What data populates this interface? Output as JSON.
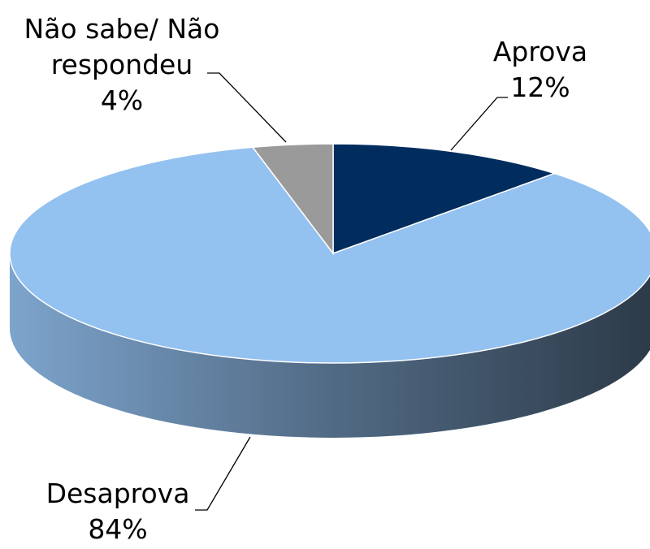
{
  "chart_data": {
    "type": "pie",
    "categories": [
      "Aprova",
      "Desaprova",
      "Não sabe/ Não respondeu"
    ],
    "values": [
      12,
      84,
      4
    ],
    "value_labels": [
      "12%",
      "84%",
      "4%"
    ],
    "colors": [
      "#002d5e",
      "#93c1f0",
      "#9a9a9a"
    ]
  }
}
